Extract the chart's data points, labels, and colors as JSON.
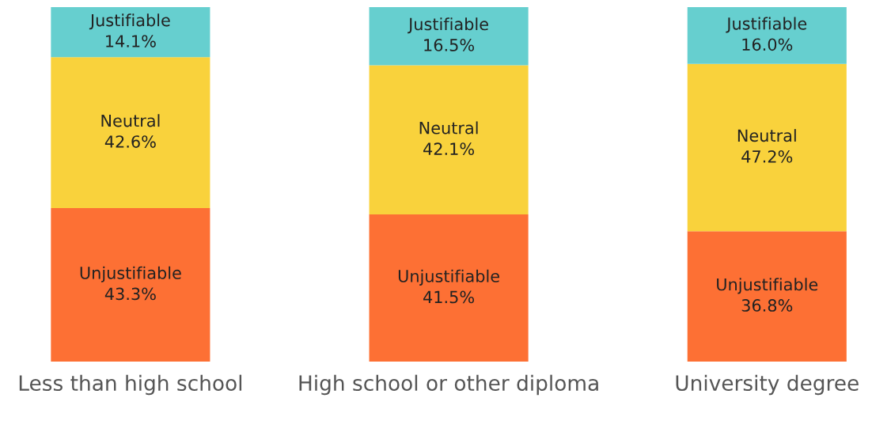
{
  "chart_data": {
    "type": "bar",
    "stacked": true,
    "categories": [
      "Less than high school",
      "High school or other diploma",
      "University degree"
    ],
    "series": [
      {
        "name": "Unjustifiable",
        "color": "#fd7034",
        "values": [
          43.3,
          41.5,
          36.8
        ],
        "value_labels": [
          "43.3%",
          "41.5%",
          "36.8%"
        ]
      },
      {
        "name": "Neutral",
        "color": "#f9d23c",
        "values": [
          42.6,
          42.1,
          47.2
        ],
        "value_labels": [
          "42.6%",
          "42.1%",
          "47.2%"
        ]
      },
      {
        "name": "Justifiable",
        "color": "#66cfcf",
        "values": [
          14.1,
          16.5,
          16.0
        ],
        "value_labels": [
          "14.1%",
          "16.5%",
          "16.0%"
        ]
      }
    ],
    "ylim": [
      0,
      100
    ],
    "tick_labels": "x",
    "grid": false,
    "legend": false
  }
}
